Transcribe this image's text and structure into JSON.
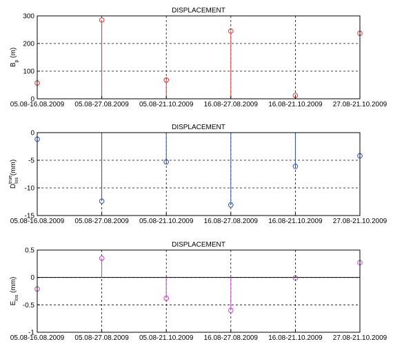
{
  "chart_data": [
    {
      "type": "stem",
      "title": "DISPLACEMENT",
      "ylabel": {
        "main": "B",
        "sub": "p",
        "unit": " (m)"
      },
      "categories": [
        "05.08-16.08.2009",
        "05.08-27.08.2009",
        "05.08-21.10.2009",
        "16.08-27.08.2009",
        "16.08-21.10.2009",
        "27.08-21.10.2009"
      ],
      "values": [
        57,
        285,
        68,
        245,
        12,
        237
      ],
      "ylim": [
        0,
        300
      ],
      "yticks": [
        0,
        100,
        200,
        300
      ],
      "baseline": 0,
      "color": "#e03030",
      "grid": true
    },
    {
      "type": "stem",
      "title": "DISPLACEMENT",
      "ylabel": {
        "main": "D",
        "sup": "true",
        "sub": "los",
        "unit": " (mm)"
      },
      "categories": [
        "05.08-16.08.2009",
        "05.08-27.08.2009",
        "05.08-21.10.2009",
        "16.08-27.08.2009",
        "16.08-21.10.2009",
        "27.08-21.10.2009"
      ],
      "values": [
        -1.2,
        -12.4,
        -5.3,
        -13.1,
        -6.1,
        -4.2
      ],
      "ylim": [
        -15,
        0
      ],
      "yticks": [
        -15,
        -10,
        -5,
        0
      ],
      "baseline": 0,
      "color": "#2a4fa8",
      "grid": true
    },
    {
      "type": "stem",
      "title": "DISPLACEMENT",
      "ylabel": {
        "main": "E",
        "sub": "los",
        "unit": " (mm)"
      },
      "categories": [
        "05.08-16.08.2009",
        "05.08-27.08.2009",
        "05.08-21.10.2009",
        "16.08-27.08.2009",
        "16.08-21.10.2009",
        "27.08-21.10.2009"
      ],
      "values": [
        -0.21,
        0.35,
        -0.38,
        -0.6,
        -0.01,
        0.27
      ],
      "ylim": [
        -1,
        0.5
      ],
      "yticks": [
        -1,
        -0.5,
        0,
        0.5
      ],
      "baseline": 0,
      "color": "#c040c0",
      "grid": true
    }
  ]
}
